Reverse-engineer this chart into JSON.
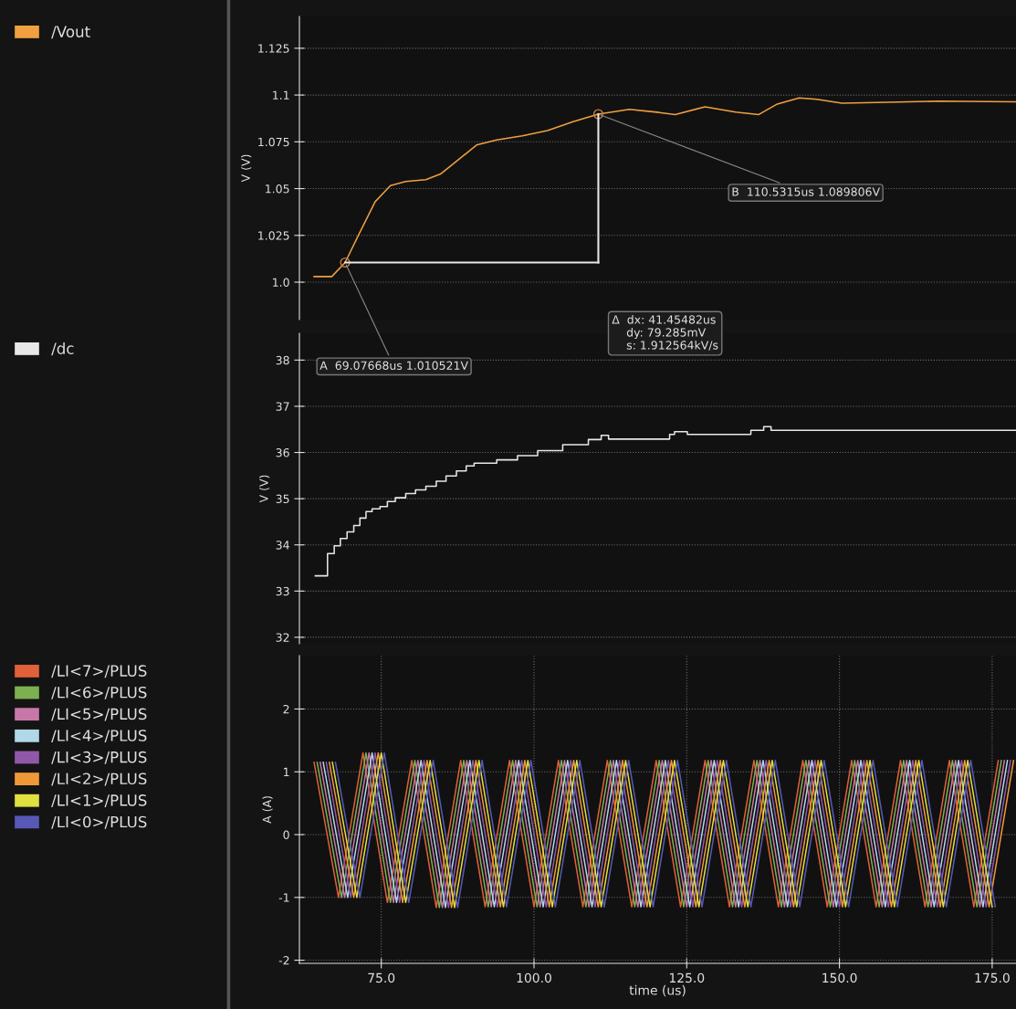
{
  "chart_data": [
    {
      "type": "line",
      "ylabel": "V (V)",
      "xlim": [
        61.6,
        178.9
      ],
      "ylim": [
        0.98,
        1.142
      ],
      "yticks": [
        {
          "value": 1.0,
          "label": "1.0"
        },
        1.025,
        1.05,
        1.075,
        1.1,
        1.125
      ],
      "tick_labels": "y",
      "grid": "y",
      "legend": "left",
      "series": [
        {
          "name": "/Vout",
          "color": "#f0a040",
          "x": [
            64.0,
            66.9,
            69.08,
            71.5,
            74.0,
            76.5,
            79.0,
            82.3,
            84.7,
            87.3,
            90.6,
            93.9,
            98.1,
            102.2,
            106.4,
            110.53,
            115.6,
            120.5,
            123.1,
            128.0,
            133.0,
            136.8,
            139.7,
            143.4,
            146.3,
            150.4,
            157.9,
            166.3,
            178.9
          ],
          "values": [
            1.003,
            1.003,
            1.0105,
            1.0267,
            1.043,
            1.0516,
            1.0538,
            1.0548,
            1.0578,
            1.0646,
            1.0733,
            1.076,
            1.0782,
            1.081,
            1.0858,
            1.0898,
            1.0923,
            1.0907,
            1.0896,
            1.0937,
            1.0909,
            1.0896,
            1.095,
            1.0985,
            1.0977,
            1.0956,
            1.0961,
            1.0967,
            1.0964
          ]
        }
      ],
      "annotations": [
        {
          "text": "A  69.07668us 1.010521V",
          "x": 69.07668,
          "y": 1.010521
        },
        {
          "text": "B  110.5315us 1.089806V",
          "x": 110.5315,
          "y": 1.089806
        },
        "Δ  dx: 41.45482us\n    dy: 79.285mV\n    s: 1.912564kV/s"
      ]
    },
    {
      "type": "line",
      "ylabel": "V (V)",
      "xlim": [
        61.6,
        178.9
      ],
      "ylim": [
        31.86,
        38.58
      ],
      "yticks": [
        32,
        33,
        34,
        35,
        36,
        37,
        38
      ],
      "tick_labels": "y",
      "grid": "y",
      "legend": "left",
      "series": [
        {
          "name": "/dc",
          "type": "step",
          "color": "#e8e8e8",
          "x": [
            64.2,
            66.2,
            67.3,
            68.3,
            69.4,
            70.5,
            71.5,
            72.5,
            73.5,
            74.8,
            76.0,
            77.3,
            79.0,
            80.6,
            82.3,
            84.0,
            85.6,
            87.3,
            88.9,
            90.2,
            93.9,
            97.3,
            100.6,
            104.7,
            108.9,
            111.0,
            112.2,
            122.2,
            123.0,
            125.1,
            135.5,
            137.6,
            138.8,
            178.9
          ],
          "values": [
            33.33,
            33.81,
            33.98,
            34.14,
            34.28,
            34.42,
            34.58,
            34.72,
            34.78,
            34.83,
            34.94,
            35.02,
            35.11,
            35.19,
            35.27,
            35.38,
            35.49,
            35.6,
            35.71,
            35.77,
            35.84,
            35.93,
            36.04,
            36.17,
            36.28,
            36.37,
            36.29,
            36.39,
            36.45,
            36.39,
            36.48,
            36.56,
            36.48,
            36.48
          ]
        }
      ]
    },
    {
      "type": "line",
      "ylabel": "A (A)",
      "xlabel": "time (us)",
      "xlim": [
        61.6,
        178.9
      ],
      "ylim": [
        -2.05,
        2.85
      ],
      "xticks": [
        {
          "value": 75,
          "label": "75.0"
        },
        {
          "value": 100,
          "label": "100.0"
        },
        {
          "value": 125,
          "label": "125.0"
        },
        {
          "value": 150,
          "label": "150.0"
        },
        {
          "value": 175,
          "label": "175.0"
        }
      ],
      "yticks": [
        -2,
        -1,
        0,
        1,
        2
      ],
      "grid": true,
      "legend": "left",
      "series": [
        {
          "name": "/LI<7>/PLUS",
          "color": "#e0603a",
          "x": [
            64,
            68,
            72,
            76,
            80,
            84,
            88,
            92,
            96,
            100,
            104,
            108,
            112,
            116,
            120,
            124,
            128,
            132,
            136,
            140,
            144,
            148,
            152,
            156,
            160,
            164,
            168,
            172,
            176
          ],
          "values": [
            1.15,
            -1.0,
            1.3,
            -1.08,
            1.18,
            -1.16,
            1.18,
            -1.15,
            1.18,
            -1.15,
            1.18,
            -1.15,
            1.18,
            -1.15,
            1.18,
            -1.15,
            1.18,
            -1.15,
            1.18,
            -1.15,
            1.18,
            -1.15,
            1.18,
            -1.15,
            1.18,
            -1.15,
            1.18,
            -1.15,
            1.18
          ]
        },
        {
          "name": "/LI<6>/PLUS",
          "color": "#7cb050",
          "x": [
            64.5,
            68.5,
            72.5,
            76.5,
            80.5,
            84.5,
            88.5,
            92.5,
            96.5,
            100.5,
            104.5,
            108.5,
            112.5,
            116.5,
            120.5,
            124.5,
            128.5,
            132.5,
            136.5,
            140.5,
            144.5,
            148.5,
            152.5,
            156.5,
            160.5,
            164.5,
            168.5,
            172.5,
            176.5
          ],
          "values": [
            1.15,
            -1.0,
            1.3,
            -1.08,
            1.18,
            -1.16,
            1.18,
            -1.15,
            1.18,
            -1.15,
            1.18,
            -1.15,
            1.18,
            -1.15,
            1.18,
            -1.15,
            1.18,
            -1.15,
            1.18,
            -1.15,
            1.18,
            -1.15,
            1.18,
            -1.15,
            1.18,
            -1.15,
            1.18,
            -1.15,
            1.18
          ]
        },
        {
          "name": "/LI<5>/PLUS",
          "color": "#c878a8",
          "x": [
            65,
            69,
            73,
            77,
            81,
            85,
            89,
            93,
            97,
            101,
            105,
            109,
            113,
            117,
            121,
            125,
            129,
            133,
            137,
            141,
            145,
            149,
            153,
            157,
            161,
            165,
            169,
            173,
            177
          ],
          "values": [
            1.15,
            -1.0,
            1.3,
            -1.08,
            1.18,
            -1.16,
            1.18,
            -1.15,
            1.18,
            -1.15,
            1.18,
            -1.15,
            1.18,
            -1.15,
            1.18,
            -1.15,
            1.18,
            -1.15,
            1.18,
            -1.15,
            1.18,
            -1.15,
            1.18,
            -1.15,
            1.18,
            -1.15,
            1.18,
            -1.15,
            1.18
          ]
        },
        {
          "name": "/LI<4>/PLUS",
          "color": "#b0d8e8",
          "x": [
            65.5,
            69.5,
            73.5,
            77.5,
            81.5,
            85.5,
            89.5,
            93.5,
            97.5,
            101.5,
            105.5,
            109.5,
            113.5,
            117.5,
            121.5,
            125.5,
            129.5,
            133.5,
            137.5,
            141.5,
            145.5,
            149.5,
            153.5,
            157.5,
            161.5,
            165.5,
            169.5,
            173.5,
            177.5
          ],
          "values": [
            1.15,
            -1.0,
            1.3,
            -1.08,
            1.18,
            -1.16,
            1.18,
            -1.15,
            1.18,
            -1.15,
            1.18,
            -1.15,
            1.18,
            -1.15,
            1.18,
            -1.15,
            1.18,
            -1.15,
            1.18,
            -1.15,
            1.18,
            -1.15,
            1.18,
            -1.15,
            1.18,
            -1.15,
            1.18,
            -1.15,
            1.18
          ]
        },
        {
          "name": "/LI<3>/PLUS",
          "color": "#9058a8",
          "x": [
            66,
            70,
            74,
            78,
            82,
            86,
            90,
            94,
            98,
            102,
            106,
            110,
            114,
            118,
            122,
            126,
            130,
            134,
            138,
            142,
            146,
            150,
            154,
            158,
            162,
            166,
            170,
            174,
            178
          ],
          "values": [
            1.15,
            -1.0,
            1.3,
            -1.08,
            1.18,
            -1.16,
            1.18,
            -1.15,
            1.18,
            -1.15,
            1.18,
            -1.15,
            1.18,
            -1.15,
            1.18,
            -1.15,
            1.18,
            -1.15,
            1.18,
            -1.15,
            1.18,
            -1.15,
            1.18,
            -1.15,
            1.18,
            -1.15,
            1.18,
            -1.15,
            1.18
          ]
        },
        {
          "name": "/LI<2>/PLUS",
          "color": "#f09838",
          "x": [
            66.5,
            70.5,
            74.5,
            78.5,
            82.5,
            86.5,
            90.5,
            94.5,
            98.5,
            102.5,
            106.5,
            110.5,
            114.5,
            118.5,
            122.5,
            126.5,
            130.5,
            134.5,
            138.5,
            142.5,
            146.5,
            150.5,
            154.5,
            158.5,
            162.5,
            166.5,
            170.5,
            174.5,
            178.5
          ],
          "values": [
            1.15,
            -1.0,
            1.3,
            -1.08,
            1.18,
            -1.16,
            1.18,
            -1.15,
            1.18,
            -1.15,
            1.18,
            -1.15,
            1.18,
            -1.15,
            1.18,
            -1.15,
            1.18,
            -1.15,
            1.18,
            -1.15,
            1.18,
            -1.15,
            1.18,
            -1.15,
            1.18,
            -1.15,
            1.18,
            -1.15,
            1.18
          ]
        },
        {
          "name": "/LI<1>/PLUS",
          "color": "#e0e040",
          "x": [
            67,
            71,
            75,
            79,
            83,
            87,
            91,
            95,
            99,
            103,
            107,
            111,
            115,
            119,
            123,
            127,
            131,
            135,
            139,
            143,
            147,
            151,
            155,
            159,
            163,
            167,
            171,
            175
          ],
          "values": [
            1.15,
            -1.0,
            1.3,
            -1.08,
            1.18,
            -1.16,
            1.18,
            -1.15,
            1.18,
            -1.15,
            1.18,
            -1.15,
            1.18,
            -1.15,
            1.18,
            -1.15,
            1.18,
            -1.15,
            1.18,
            -1.15,
            1.18,
            -1.15,
            1.18,
            -1.15,
            1.18,
            -1.15,
            1.18,
            -1.15
          ]
        },
        {
          "name": "/LI<0>/PLUS",
          "color": "#5858b8",
          "x": [
            67.5,
            71.5,
            75.5,
            79.5,
            83.5,
            87.5,
            91.5,
            95.5,
            99.5,
            103.5,
            107.5,
            111.5,
            115.5,
            119.5,
            123.5,
            127.5,
            131.5,
            135.5,
            139.5,
            143.5,
            147.5,
            151.5,
            155.5,
            159.5,
            163.5,
            167.5,
            171.5,
            175.5
          ],
          "values": [
            1.15,
            -1.0,
            1.3,
            -1.08,
            1.18,
            -1.16,
            1.18,
            -1.15,
            1.18,
            -1.15,
            1.18,
            -1.15,
            1.18,
            -1.15,
            1.18,
            -1.15,
            1.18,
            -1.15,
            1.18,
            -1.15,
            1.18,
            -1.15,
            1.18,
            -1.15,
            1.18,
            -1.15,
            1.18,
            -1.15
          ]
        }
      ]
    }
  ]
}
